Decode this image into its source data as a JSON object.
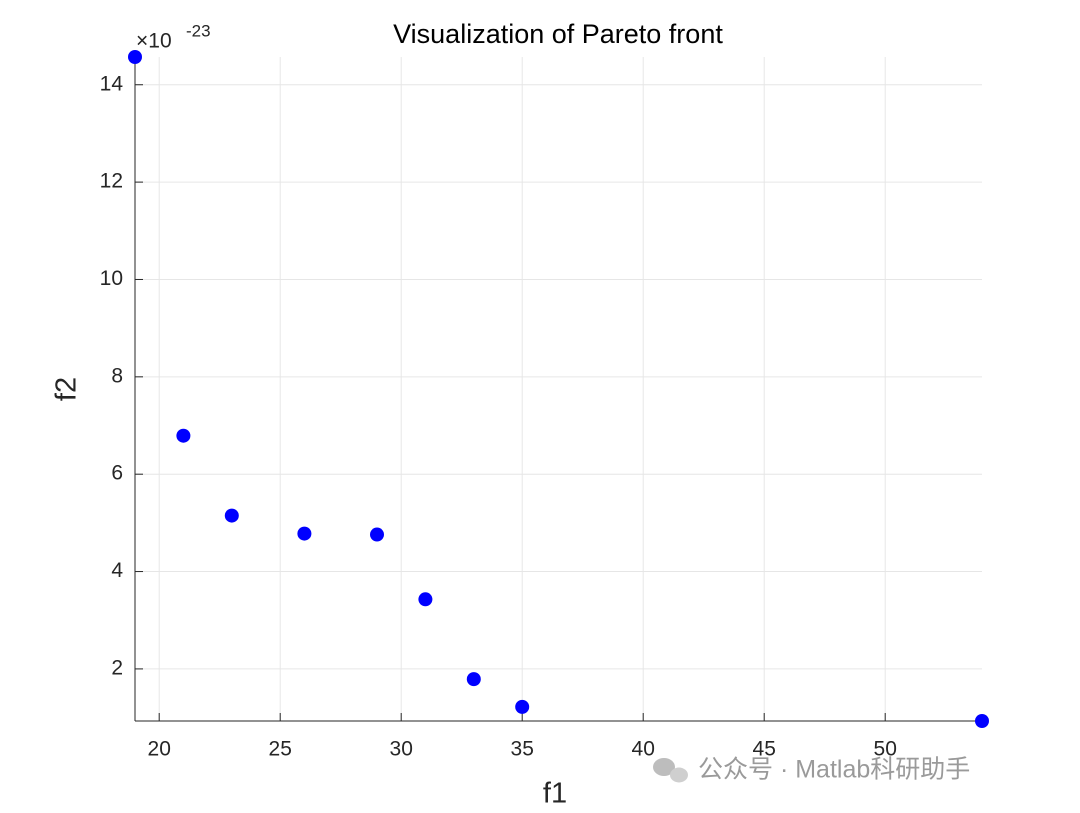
{
  "chart_data": {
    "type": "scatter",
    "title": "Visualization of Pareto front",
    "x_label": "f1",
    "y_label": "f2",
    "y_exponent_label": {
      "base": "×10",
      "exponent": "-23"
    },
    "watermark": "公众号 · Matlab科研助手",
    "series": [
      {
        "color": "#0000ff",
        "x": [
          19,
          21,
          23,
          26,
          29,
          31,
          33,
          35,
          54
        ],
        "values": [
          14.57,
          6.79,
          5.15,
          4.78,
          4.76,
          3.43,
          1.79,
          1.22,
          0.93
        ]
      }
    ],
    "xlim": [
      19,
      54
    ],
    "xticks": [
      20,
      25,
      30,
      35,
      40,
      45,
      50
    ],
    "ylim": [
      0.93,
      14.57
    ],
    "yticks": [
      2,
      4,
      6,
      8,
      10,
      12,
      14
    ],
    "grid": true
  }
}
